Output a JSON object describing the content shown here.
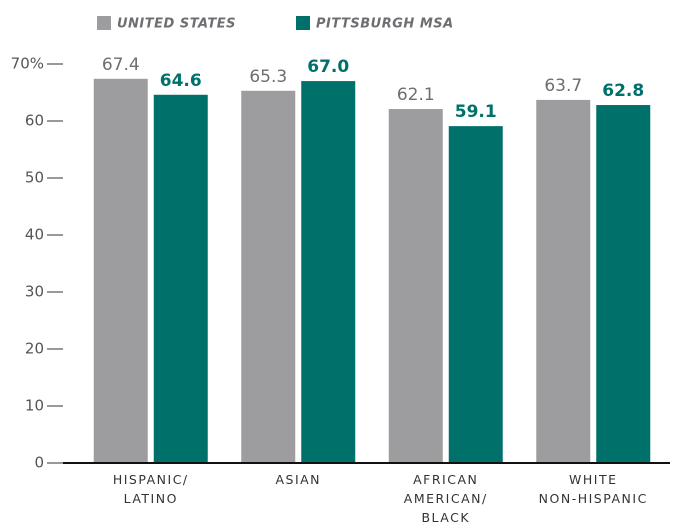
{
  "chart_data": {
    "type": "bar",
    "categories": [
      "HISPANIC/ LATINO",
      "ASIAN",
      "AFRICAN AMERICAN/ BLACK",
      "WHITE NON-HISPANIC"
    ],
    "series": [
      {
        "name": "UNITED STATES",
        "color": "#9d9d9f",
        "values": [
          67.4,
          65.3,
          62.1,
          63.7
        ],
        "value_labels": [
          "67.4",
          "65.3",
          "62.1",
          "63.7"
        ]
      },
      {
        "name": "PITTSBURGH MSA",
        "color": "#00706b",
        "values": [
          64.6,
          67.0,
          59.1,
          62.8
        ],
        "value_labels": [
          "64.6",
          "67.0",
          "59.1",
          "62.8"
        ]
      }
    ],
    "ylim": [
      0,
      70
    ],
    "yticks": [
      0,
      10,
      20,
      30,
      40,
      50,
      60,
      {
        "value": 70,
        "label": "70%"
      }
    ],
    "legend": "top"
  }
}
